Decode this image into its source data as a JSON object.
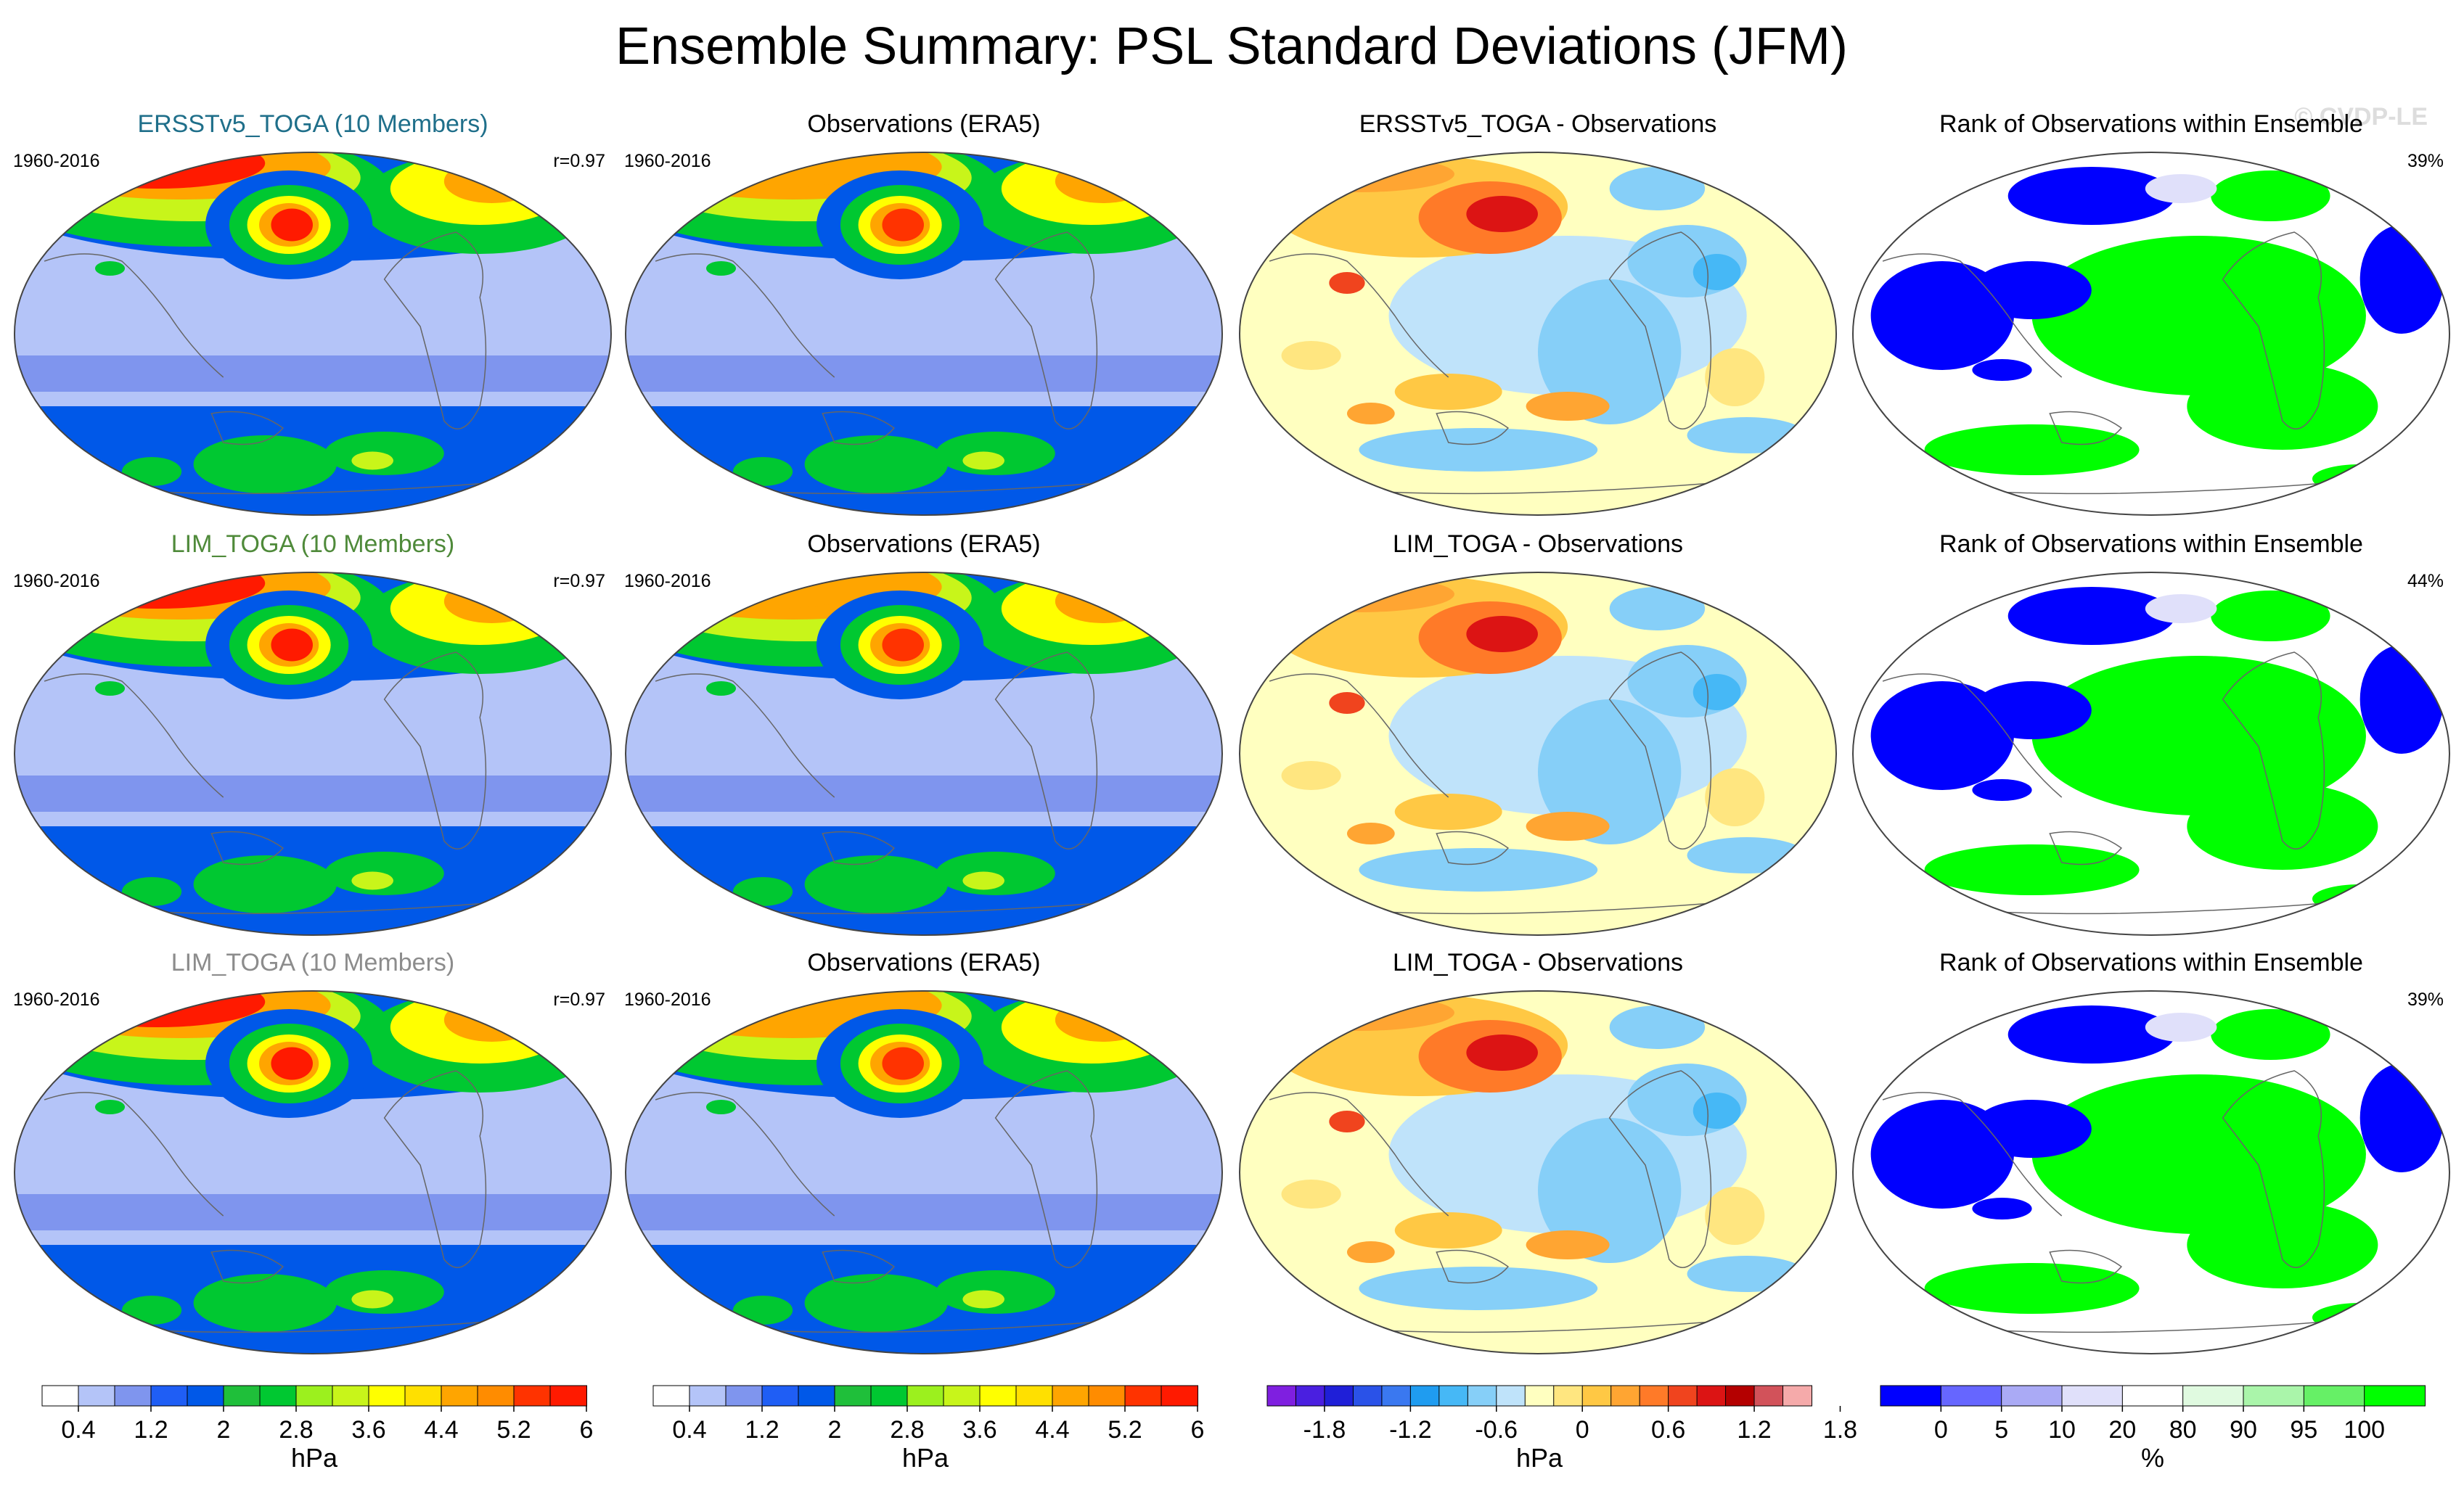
{
  "chart_data": {
    "type": "heatmap",
    "title": "Ensemble Summary: PSL Standard Deviations (JFM)",
    "watermark": "© CVDP-LE",
    "period": "1960-2016",
    "rows": [
      {
        "ensemble_title": "ERSSTv5_TOGA (10 Members)",
        "ensemble_title_color": "#1f6f8a",
        "pattern_correlation": "r=0.97",
        "obs_title": "Observations (ERA5)",
        "diff_title": "ERSSTv5_TOGA - Observations",
        "rank_title": "Rank of Observations within Ensemble",
        "rank_pct": "39%"
      },
      {
        "ensemble_title": "LIM_TOGA (10 Members)",
        "ensemble_title_color": "#4f8a3a",
        "pattern_correlation": "r=0.97",
        "obs_title": "Observations (ERA5)",
        "diff_title": "LIM_TOGA - Observations",
        "rank_title": "Rank of Observations within Ensemble",
        "rank_pct": "44%"
      },
      {
        "ensemble_title": "LIM_TOGA (10 Members)",
        "ensemble_title_color": "#8c8c8c",
        "pattern_correlation": "r=0.97",
        "obs_title": "Observations (ERA5)",
        "diff_title": "LIM_TOGA - Observations",
        "rank_title": "Rank of Observations within Ensemble",
        "rank_pct": "39%"
      }
    ],
    "colorbars": [
      {
        "name": "std",
        "unit": "hPa",
        "levels": [
          0.4,
          0.8,
          1.2,
          1.6,
          2,
          2.4,
          2.8,
          3.2,
          3.6,
          4.0,
          4.4,
          4.8,
          5.2,
          5.6,
          6
        ],
        "tick_labels": [
          "0.4",
          "1.2",
          "2",
          "2.8",
          "3.6",
          "4.4",
          "5.2",
          "6"
        ],
        "colors": [
          "#ffffff",
          "#b4c4f8",
          "#7f95ee",
          "#1f5ef5",
          "#0058e8",
          "#1fbf3a",
          "#00c831",
          "#9cf01e",
          "#c8f51a",
          "#ffff00",
          "#ffe000",
          "#ffa500",
          "#ff8c00",
          "#ff3300",
          "#ff1a00"
        ]
      },
      {
        "name": "std_obs",
        "unit": "hPa",
        "levels": [
          0.4,
          0.8,
          1.2,
          1.6,
          2,
          2.4,
          2.8,
          3.2,
          3.6,
          4.0,
          4.4,
          4.8,
          5.2,
          5.6,
          6
        ],
        "tick_labels": [
          "0.4",
          "1.2",
          "2",
          "2.8",
          "3.6",
          "4.4",
          "5.2",
          "6"
        ],
        "colors": [
          "#ffffff",
          "#b4c4f8",
          "#7f95ee",
          "#1f5ef5",
          "#0058e8",
          "#1fbf3a",
          "#00c831",
          "#9cf01e",
          "#c8f51a",
          "#ffff00",
          "#ffe000",
          "#ffa500",
          "#ff8c00",
          "#ff3300",
          "#ff1a00"
        ]
      },
      {
        "name": "diff",
        "unit": "hPa",
        "levels": [
          -2.1,
          -1.8,
          -1.5,
          -1.2,
          -0.9,
          -0.6,
          -0.3,
          0,
          0.3,
          0.6,
          0.9,
          1.2,
          1.5,
          1.8,
          2.1
        ],
        "tick_labels": [
          "-1.8",
          "-1.2",
          "-0.6",
          "0",
          "0.6",
          "1.2",
          "1.8"
        ],
        "colors": [
          "#7f1fe0",
          "#4a1fe0",
          "#1f1fd8",
          "#2a52e8",
          "#3a78f0",
          "#1f9cf0",
          "#46b8f6",
          "#86cff8",
          "#bfe3fa",
          "#ffffc0",
          "#ffe680",
          "#ffc844",
          "#ffa532",
          "#ff7a28",
          "#f0441e",
          "#dc1414",
          "#b40000",
          "#d2525a",
          "#f5aaaa"
        ]
      },
      {
        "name": "rank",
        "unit": "%",
        "levels": [
          0,
          5,
          10,
          20,
          80,
          90,
          95,
          100
        ],
        "tick_labels": [
          "0",
          "5",
          "10",
          "20",
          "80",
          "90",
          "95",
          "100"
        ],
        "colors": [
          "#0000ff",
          "#6666ff",
          "#aaaaf5",
          "#e0e0fa",
          "#ffffff",
          "#e0fae0",
          "#aaf5aa",
          "#66f066",
          "#00ff00"
        ]
      }
    ]
  }
}
